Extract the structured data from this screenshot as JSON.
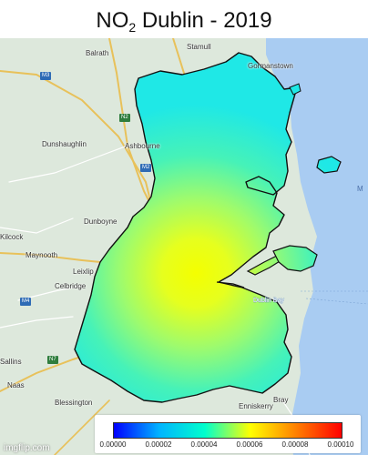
{
  "title": {
    "prefix": "NO",
    "subscript": "2",
    "suffix": " Dublin - 2019"
  },
  "basemap": {
    "land_color": "#dde8dc",
    "sea_color": "#a9ccf2",
    "places": [
      "Stamull",
      "Balrath",
      "Gormanstown",
      "Dunshaughlin",
      "Ashbourne",
      "Dunboyne",
      "Maynooth",
      "Celbridge",
      "Leixlip",
      "Naas",
      "Sallins",
      "Kilcock",
      "Blessington",
      "Bray",
      "Enniskerry",
      "Dublin Bay"
    ],
    "road_shields": [
      "M3",
      "N2",
      "M2",
      "M4",
      "N7"
    ],
    "sea_label": "M"
  },
  "colorbar": {
    "colors": [
      "#0000ff",
      "#00b4ff",
      "#00ffcc",
      "#ffff00",
      "#ff8000",
      "#ff0000"
    ],
    "ticks": [
      "0.00000",
      "0.00002",
      "0.00004",
      "0.00006",
      "0.00008",
      "0.00010"
    ],
    "min": 0.0,
    "max": 0.0001
  },
  "watermark": "imgflip.com"
}
